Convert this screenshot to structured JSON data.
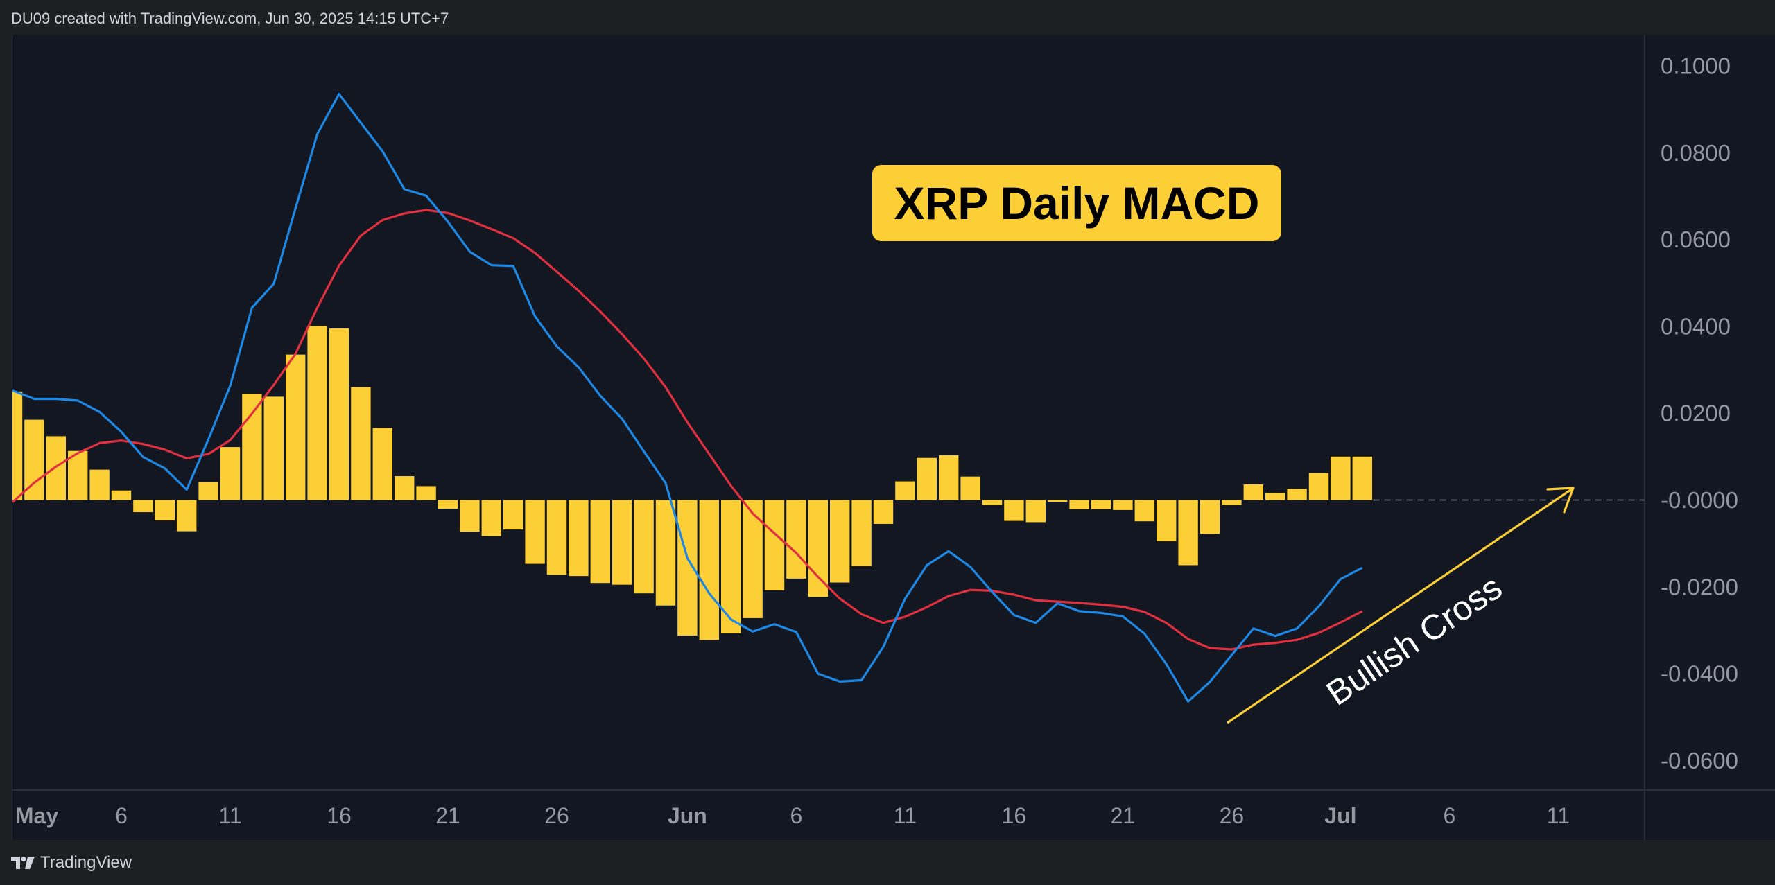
{
  "header": {
    "text": "DU09 created with TradingView.com, Jun 30, 2025 14:15 UTC+7"
  },
  "footer": {
    "brand": "TradingView"
  },
  "colors": {
    "background": "#131722",
    "histogram": "#fccf37",
    "macd_line": "#1e88e5",
    "signal_line": "#e03040",
    "title_box": "#fccf37",
    "arrow": "#fccf37",
    "axis_text": "#9598a1"
  },
  "chart_data": {
    "type": "bar",
    "title": "XRP Daily MACD",
    "annotation": "Bullish Cross",
    "ylim": [
      -0.065,
      0.105
    ],
    "y_ticks": [
      "0.1000",
      "0.0800",
      "0.0600",
      "0.0400",
      "0.0200",
      "-0.0000",
      "-0.0200",
      "-0.0400",
      "-0.0600"
    ],
    "y_tick_values": [
      0.1,
      0.08,
      0.06,
      0.04,
      0.02,
      0,
      -0.02,
      -0.04,
      -0.06
    ],
    "x_ticks": [
      "May",
      "6",
      "11",
      "16",
      "21",
      "26",
      "Jun",
      "6",
      "11",
      "16",
      "21",
      "26",
      "Jul",
      "6",
      "11"
    ],
    "x_tick_days": [
      0,
      5,
      10,
      15,
      20,
      25,
      31,
      36,
      41,
      46,
      51,
      56,
      61,
      66,
      71
    ],
    "x_tick_bold": [
      true,
      false,
      false,
      false,
      false,
      false,
      true,
      false,
      false,
      false,
      false,
      false,
      true,
      false,
      false
    ],
    "x_start": "2025-05-01",
    "x_end": "2025-06-29",
    "grid": false,
    "series": [
      {
        "name": "Histogram",
        "type": "bar",
        "values": [
          0.025,
          0.0185,
          0.0147,
          0.0113,
          0.007,
          0.0022,
          -0.0028,
          -0.0047,
          -0.0072,
          0.0041,
          0.0122,
          0.0245,
          0.0238,
          0.0335,
          0.0401,
          0.0395,
          0.026,
          0.0166,
          0.0055,
          0.0032,
          -0.002,
          -0.0073,
          -0.0083,
          -0.0068,
          -0.0147,
          -0.0172,
          -0.0175,
          -0.0191,
          -0.0195,
          -0.0215,
          -0.0243,
          -0.0312,
          -0.0322,
          -0.0307,
          -0.0272,
          -0.0208,
          -0.0181,
          -0.0223,
          -0.019,
          -0.0152,
          -0.0055,
          0.0043,
          0.0097,
          0.0103,
          0.0054,
          -0.0011,
          -0.0048,
          -0.0051,
          -0.0004,
          -0.0021,
          -0.0021,
          -0.0023,
          -0.0049,
          -0.0095,
          -0.015,
          -0.0078,
          -0.0011,
          0.0036,
          0.0016,
          0.0026,
          0.0062,
          0.01,
          0.01
        ]
      },
      {
        "name": "MACD",
        "type": "line",
        "values": [
          0.0252,
          0.0233,
          0.0233,
          0.0229,
          0.0203,
          0.0157,
          0.0099,
          0.0073,
          0.0024,
          0.014,
          0.0263,
          0.0443,
          0.0498,
          0.0672,
          0.0843,
          0.0935,
          0.0869,
          0.0803,
          0.0716,
          0.0701,
          0.0641,
          0.0572,
          0.0541,
          0.0539,
          0.0423,
          0.0354,
          0.0306,
          0.024,
          0.0187,
          0.0112,
          0.0039,
          -0.0134,
          -0.0215,
          -0.0275,
          -0.0303,
          -0.0286,
          -0.0304,
          -0.04,
          -0.0418,
          -0.0415,
          -0.0338,
          -0.0227,
          -0.015,
          -0.0118,
          -0.0154,
          -0.0212,
          -0.0265,
          -0.0283,
          -0.0238,
          -0.0256,
          -0.026,
          -0.0268,
          -0.0308,
          -0.0378,
          -0.0464,
          -0.0419,
          -0.0357,
          -0.0296,
          -0.0313,
          -0.0296,
          -0.0245,
          -0.0182,
          -0.0156
        ]
      },
      {
        "name": "Signal",
        "type": "line",
        "values": [
          -0.0005,
          0.004,
          0.0077,
          0.0108,
          0.0131,
          0.0137,
          0.0129,
          0.0116,
          0.0096,
          0.0106,
          0.0138,
          0.0199,
          0.0265,
          0.0337,
          0.0443,
          0.054,
          0.0609,
          0.0645,
          0.066,
          0.0668,
          0.0661,
          0.0644,
          0.0624,
          0.0603,
          0.0569,
          0.0526,
          0.0482,
          0.0434,
          0.0382,
          0.0326,
          0.026,
          0.0179,
          0.0106,
          0.0033,
          -0.0031,
          -0.0077,
          -0.0122,
          -0.0177,
          -0.0227,
          -0.0263,
          -0.0283,
          -0.0269,
          -0.0247,
          -0.0221,
          -0.0207,
          -0.0209,
          -0.0218,
          -0.0231,
          -0.0234,
          -0.0237,
          -0.0241,
          -0.0246,
          -0.0258,
          -0.0283,
          -0.032,
          -0.0341,
          -0.0344,
          -0.0333,
          -0.0329,
          -0.0322,
          -0.0306,
          -0.0282,
          -0.0256
        ]
      }
    ]
  }
}
